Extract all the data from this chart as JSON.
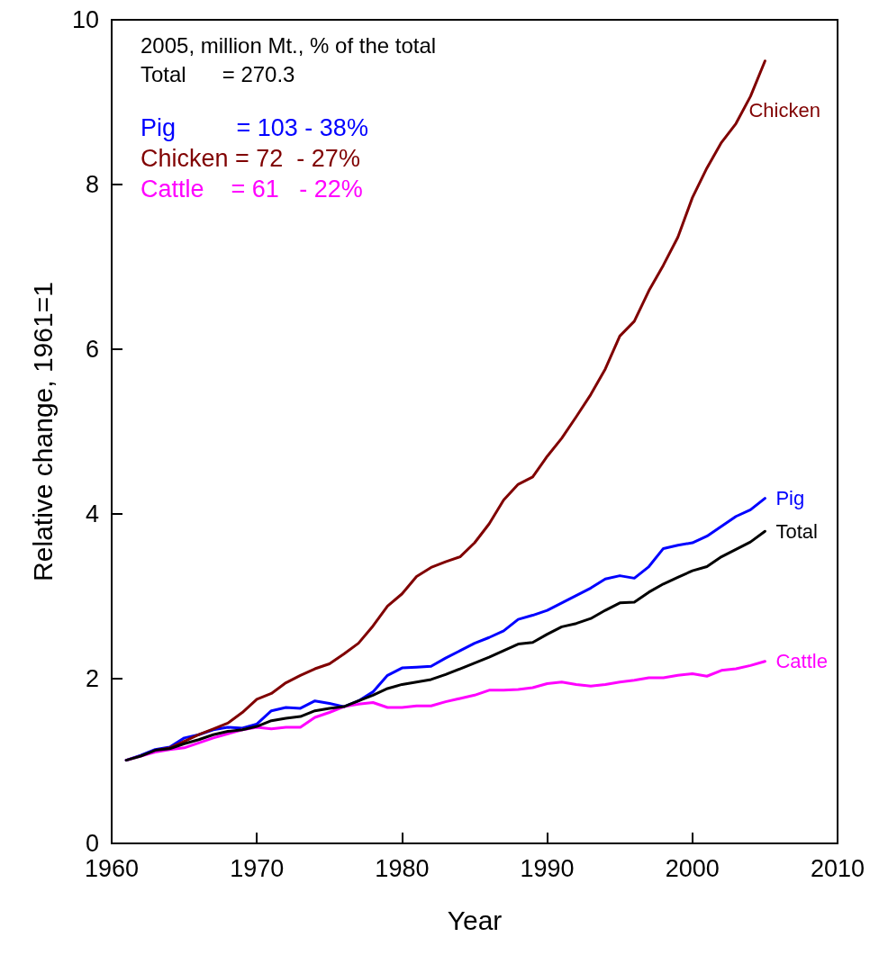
{
  "chart_data": {
    "type": "line",
    "xlabel": "Year",
    "ylabel": "Relative change, 1961=1",
    "x": [
      1961,
      1962,
      1963,
      1964,
      1965,
      1966,
      1967,
      1968,
      1969,
      1970,
      1971,
      1972,
      1973,
      1974,
      1975,
      1976,
      1977,
      1978,
      1979,
      1980,
      1981,
      1982,
      1983,
      1984,
      1985,
      1986,
      1987,
      1988,
      1989,
      1990,
      1991,
      1992,
      1993,
      1994,
      1995,
      1996,
      1997,
      1998,
      1999,
      2000,
      2001,
      2002,
      2003,
      2004,
      2005
    ],
    "series": [
      {
        "name": "Pig",
        "color": "#0000ff",
        "values": [
          1.01,
          1.07,
          1.14,
          1.17,
          1.28,
          1.32,
          1.38,
          1.41,
          1.4,
          1.45,
          1.61,
          1.65,
          1.64,
          1.73,
          1.7,
          1.66,
          1.73,
          1.84,
          2.04,
          2.13,
          2.14,
          2.15,
          2.25,
          2.34,
          2.43,
          2.5,
          2.58,
          2.72,
          2.77,
          2.83,
          2.92,
          3.01,
          3.1,
          3.21,
          3.25,
          3.22,
          3.36,
          3.58,
          3.62,
          3.65,
          3.73,
          3.85,
          3.97,
          4.05,
          4.19
        ]
      },
      {
        "name": "Chicken",
        "color": "#800000",
        "values": [
          null,
          null,
          1.13,
          1.16,
          1.24,
          1.32,
          1.39,
          1.46,
          1.59,
          1.75,
          1.82,
          1.95,
          2.04,
          2.12,
          2.18,
          2.3,
          2.43,
          2.64,
          2.88,
          3.03,
          3.24,
          3.35,
          3.42,
          3.48,
          3.65,
          3.88,
          4.17,
          4.36,
          4.45,
          4.7,
          4.92,
          5.18,
          5.45,
          5.76,
          6.16,
          6.34,
          6.71,
          7.02,
          7.36,
          7.84,
          8.2,
          8.51,
          8.74,
          9.07,
          9.5
        ]
      },
      {
        "name": "Cattle",
        "color": "#ff00ff",
        "values": [
          1.01,
          1.06,
          1.11,
          1.14,
          1.16,
          1.22,
          1.28,
          1.33,
          1.38,
          1.41,
          1.39,
          1.41,
          1.41,
          1.53,
          1.59,
          1.66,
          1.69,
          1.71,
          1.65,
          1.65,
          1.67,
          1.67,
          1.72,
          1.76,
          1.8,
          1.86,
          1.86,
          1.87,
          1.89,
          1.94,
          1.96,
          1.93,
          1.91,
          1.93,
          1.96,
          1.98,
          2.01,
          2.01,
          2.04,
          2.06,
          2.03,
          2.1,
          2.12,
          2.16,
          2.21
        ]
      },
      {
        "name": "Total",
        "color": "#000000",
        "values": [
          1.01,
          1.06,
          1.13,
          1.15,
          1.21,
          1.26,
          1.32,
          1.36,
          1.38,
          1.42,
          1.49,
          1.52,
          1.54,
          1.61,
          1.64,
          1.66,
          1.73,
          1.8,
          1.88,
          1.93,
          1.96,
          1.99,
          2.05,
          2.12,
          2.19,
          2.26,
          2.34,
          2.42,
          2.44,
          2.54,
          2.63,
          2.67,
          2.73,
          2.83,
          2.92,
          2.93,
          3.05,
          3.15,
          3.23,
          3.31,
          3.36,
          3.48,
          3.57,
          3.66,
          3.79
        ]
      }
    ],
    "annotations": [
      "2005, million Mt., % of the total",
      "Total      = 270.3",
      "Pig         = 103 - 38%",
      "Chicken = 72  - 27%",
      "Cattle    = 61   - 22%"
    ],
    "xlim": [
      1960,
      2010
    ],
    "xticks": [
      1960,
      1970,
      1980,
      1990,
      2000,
      2010
    ],
    "ylim": [
      0,
      10
    ],
    "yticks": [
      0,
      2,
      4,
      6,
      8,
      10
    ],
    "line_style": "solid",
    "marker": "none",
    "grid": false,
    "legend": false
  }
}
